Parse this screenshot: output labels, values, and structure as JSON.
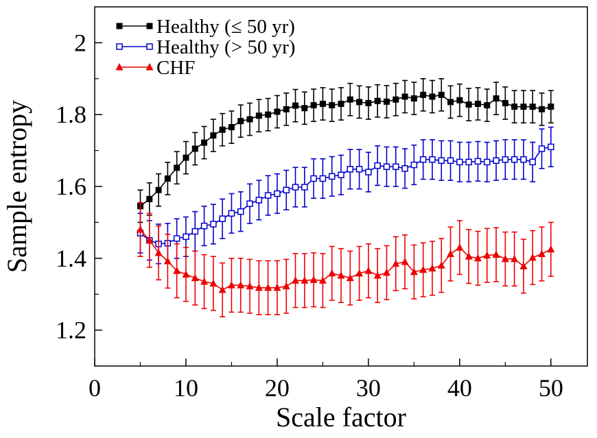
{
  "chart_data": {
    "type": "line",
    "xlabel": "Scale factor",
    "ylabel": "Sample entropy",
    "xlim": [
      0,
      54
    ],
    "ylim": [
      1.1,
      2.1
    ],
    "xticks": [
      0,
      10,
      20,
      30,
      40,
      50
    ],
    "yticks": [
      1.2,
      1.4,
      1.6,
      1.8,
      2.0
    ],
    "xtick_labels": [
      "0",
      "10",
      "20",
      "30",
      "40",
      "50"
    ],
    "ytick_labels": [
      "1.2",
      "1.4",
      "1.6",
      "1.8",
      "2"
    ],
    "legend_position": "top-left",
    "grid": false,
    "x": [
      5,
      6,
      7,
      8,
      9,
      10,
      11,
      12,
      13,
      14,
      15,
      16,
      17,
      18,
      19,
      20,
      21,
      22,
      23,
      24,
      25,
      26,
      27,
      28,
      29,
      30,
      31,
      32,
      33,
      34,
      35,
      36,
      37,
      38,
      39,
      40,
      41,
      42,
      43,
      44,
      45,
      46,
      47,
      48,
      49,
      50
    ],
    "series": [
      {
        "name": "Healthy (≤ 50 yr)",
        "color": "#000000",
        "marker": "filled-square",
        "values": [
          1.545,
          1.565,
          1.59,
          1.622,
          1.652,
          1.68,
          1.705,
          1.722,
          1.742,
          1.758,
          1.765,
          1.782,
          1.787,
          1.797,
          1.8,
          1.808,
          1.815,
          1.825,
          1.818,
          1.826,
          1.83,
          1.826,
          1.83,
          1.842,
          1.835,
          1.832,
          1.838,
          1.836,
          1.842,
          1.85,
          1.845,
          1.855,
          1.85,
          1.855,
          1.835,
          1.84,
          1.828,
          1.83,
          1.826,
          1.845,
          1.832,
          1.822,
          1.822,
          1.822,
          1.815,
          1.822
        ],
        "errors": [
          0.045,
          0.045,
          0.045,
          0.045,
          0.045,
          0.045,
          0.045,
          0.045,
          0.045,
          0.045,
          0.045,
          0.045,
          0.045,
          0.045,
          0.045,
          0.045,
          0.045,
          0.045,
          0.045,
          0.045,
          0.045,
          0.045,
          0.045,
          0.045,
          0.045,
          0.045,
          0.045,
          0.045,
          0.045,
          0.045,
          0.045,
          0.045,
          0.045,
          0.045,
          0.045,
          0.045,
          0.045,
          0.045,
          0.045,
          0.045,
          0.045,
          0.045,
          0.045,
          0.045,
          0.045,
          0.045
        ]
      },
      {
        "name": "Healthy (> 50 yr)",
        "color": "#0000cc",
        "marker": "open-square",
        "values": [
          1.47,
          1.45,
          1.44,
          1.442,
          1.455,
          1.46,
          1.475,
          1.49,
          1.495,
          1.51,
          1.525,
          1.53,
          1.552,
          1.562,
          1.575,
          1.58,
          1.59,
          1.598,
          1.598,
          1.622,
          1.622,
          1.628,
          1.632,
          1.648,
          1.648,
          1.64,
          1.658,
          1.655,
          1.655,
          1.65,
          1.66,
          1.675,
          1.675,
          1.672,
          1.672,
          1.668,
          1.668,
          1.67,
          1.668,
          1.672,
          1.675,
          1.675,
          1.675,
          1.668,
          1.705,
          1.71
        ],
        "errors": [
          0.055,
          0.055,
          0.055,
          0.055,
          0.055,
          0.055,
          0.055,
          0.055,
          0.055,
          0.055,
          0.055,
          0.055,
          0.055,
          0.055,
          0.055,
          0.055,
          0.055,
          0.055,
          0.055,
          0.055,
          0.055,
          0.055,
          0.055,
          0.055,
          0.055,
          0.055,
          0.055,
          0.055,
          0.055,
          0.055,
          0.055,
          0.055,
          0.055,
          0.055,
          0.055,
          0.055,
          0.055,
          0.055,
          0.055,
          0.055,
          0.055,
          0.055,
          0.055,
          0.055,
          0.055,
          0.055
        ]
      },
      {
        "name": "CHF",
        "color": "#ee0000",
        "marker": "filled-triangle",
        "values": [
          1.48,
          1.45,
          1.415,
          1.392,
          1.365,
          1.355,
          1.345,
          1.335,
          1.33,
          1.312,
          1.325,
          1.325,
          1.322,
          1.318,
          1.318,
          1.318,
          1.322,
          1.338,
          1.338,
          1.34,
          1.338,
          1.358,
          1.352,
          1.345,
          1.358,
          1.365,
          1.352,
          1.36,
          1.385,
          1.39,
          1.362,
          1.368,
          1.372,
          1.38,
          1.412,
          1.43,
          1.405,
          1.4,
          1.408,
          1.41,
          1.398,
          1.398,
          1.378,
          1.402,
          1.412,
          1.425
        ],
        "errors": [
          0.075,
          0.075,
          0.075,
          0.075,
          0.075,
          0.075,
          0.075,
          0.075,
          0.075,
          0.075,
          0.075,
          0.075,
          0.075,
          0.075,
          0.075,
          0.075,
          0.075,
          0.075,
          0.075,
          0.075,
          0.075,
          0.075,
          0.075,
          0.075,
          0.075,
          0.075,
          0.075,
          0.075,
          0.075,
          0.075,
          0.075,
          0.075,
          0.075,
          0.075,
          0.075,
          0.075,
          0.075,
          0.075,
          0.075,
          0.075,
          0.075,
          0.075,
          0.075,
          0.075,
          0.075,
          0.075
        ]
      }
    ]
  }
}
